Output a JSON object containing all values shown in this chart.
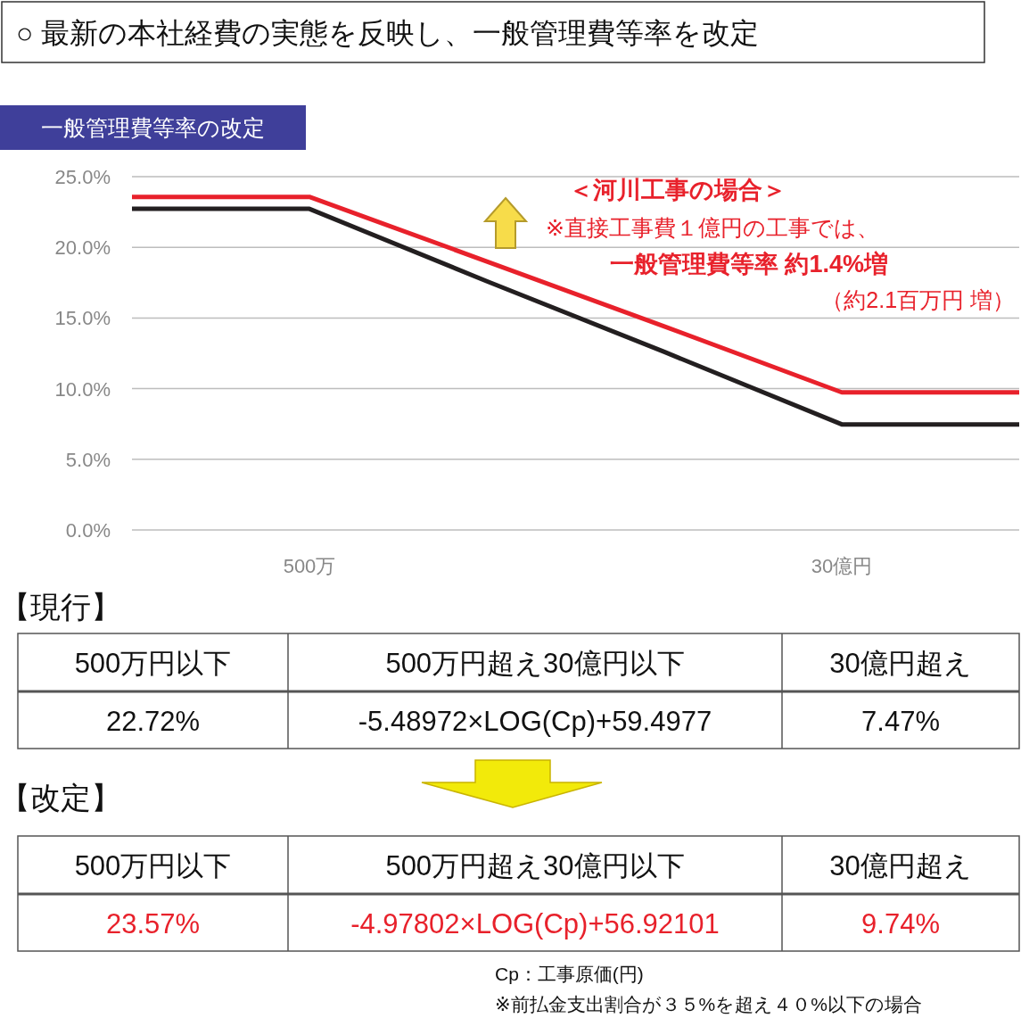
{
  "chart_data": [
    {
      "type": "line",
      "title": "○ 最新の本社経費の実態を反映し、一般管理費等率を改定",
      "subtitle": "一般管理費等率の改定",
      "categories": [
        null,
        "500万",
        null,
        null,
        "30億円",
        null
      ],
      "ylim": [
        0,
        25
      ],
      "yticks": [
        {
          "value": 0,
          "label": "0.0%"
        },
        {
          "value": 5,
          "label": "5.0%"
        },
        {
          "value": 10,
          "label": "10.0%"
        },
        {
          "value": 15,
          "label": "15.0%"
        },
        {
          "value": 20,
          "label": "20.0%"
        },
        {
          "value": 25,
          "label": "25.0%"
        }
      ],
      "grid": "y",
      "line_style": "solid",
      "marker": "none",
      "series": [
        {
          "color": "#231f20",
          "values": [
            22.72,
            22.72,
            17.6,
            12.6,
            7.47,
            7.47
          ]
        },
        {
          "color": "#e8212b",
          "values": [
            23.57,
            23.57,
            19.0,
            14.4,
            9.74,
            9.74
          ]
        }
      ],
      "annotations": [
        "＜河川工事の場合＞",
        "※直接工事費１億円の工事では、",
        "一般管理費等率 約1.4%増",
        "（約2.1百万円 増）"
      ]
    },
    {
      "type": "other",
      "annotations": [
        "【現行】",
        "500万円以下",
        "500万円超え30億円以下",
        "30億円超え",
        "22.72%",
        "-5.48972×LOG(Cp)+59.4977",
        "7.47%",
        "【改定】",
        "500万円以下",
        "500万円超え30億円以下",
        "30億円超え",
        "23.57%",
        "-4.97802×LOG(Cp)+56.92101",
        "9.74%",
        "Cp：工事原価(円)",
        "※前払金支出割合が３５%を超え４０%以下の場合"
      ]
    }
  ]
}
